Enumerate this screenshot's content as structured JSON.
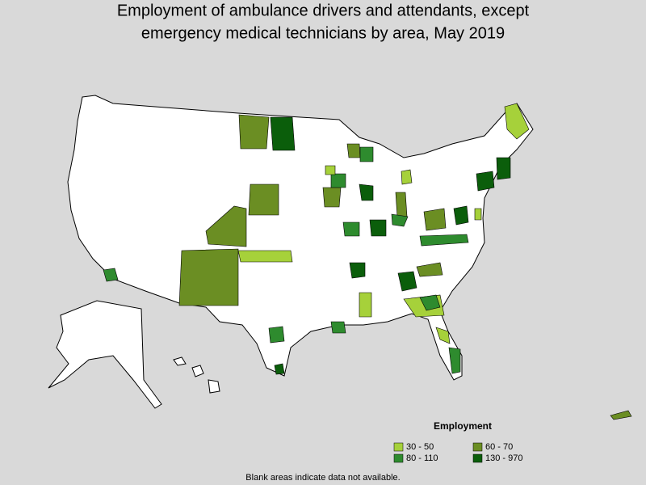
{
  "title": [
    "Employment of ambulance drivers and attendants, except",
    "emergency medical technicians by area, May 2019"
  ],
  "legend": {
    "title": "Employment",
    "items": [
      {
        "label": "30 - 50",
        "color": "#a6d13a"
      },
      {
        "label": "60 - 70",
        "color": "#6b8e23"
      },
      {
        "label": "80 - 110",
        "color": "#2e8b2e"
      },
      {
        "label": "130 - 970",
        "color": "#0b5e0b"
      }
    ]
  },
  "note": "Blank areas indicate data not available."
}
